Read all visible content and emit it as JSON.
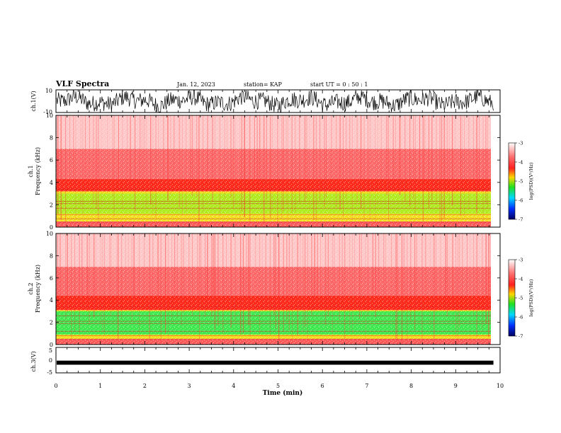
{
  "header": {
    "title": "VLF Spectra",
    "date": "Jan. 12, 2023",
    "station": "station= KAP",
    "start": "start UT =   0 : 50 : 1"
  },
  "chart_data": [
    {
      "type": "line",
      "panel": "ch1-waveform",
      "ylabel": "ch.1(V)",
      "ylim": [
        -10,
        10
      ],
      "yticks": [
        "10",
        "-10"
      ],
      "x_range_min": [
        0,
        9.85
      ],
      "description_of_series": "dense broadband waveform, amplitude mostly between -9 and +9 V"
    },
    {
      "type": "heatmap",
      "panel": "ch1-spectrogram",
      "ylabel": "ch.1 Frequency (kHz)",
      "xlim": [
        0,
        10
      ],
      "ylim": [
        0,
        10
      ],
      "yticks": [
        "0",
        "2",
        "4",
        "6",
        "8",
        "10"
      ],
      "x_data_end": 9.85,
      "bands_khz": [
        {
          "from": 0,
          "to": 0.5,
          "color": "#ff5a5a"
        },
        {
          "from": 0.5,
          "to": 3.2,
          "color": "#f0e020"
        },
        {
          "from": 1.2,
          "to": 3.0,
          "color": "#b0ea20"
        },
        {
          "from": 3.2,
          "to": 4.3,
          "color": "#ff2a1a"
        },
        {
          "from": 4.3,
          "to": 7.0,
          "color": "#ff6a6a"
        },
        {
          "from": 7.0,
          "to": 10.0,
          "color": "#ffc8c8"
        }
      ],
      "lines_khz": [
        0.45,
        0.75,
        1.1,
        1.7,
        2.1,
        2.3,
        3.4
      ]
    },
    {
      "type": "heatmap",
      "panel": "ch2-spectrogram",
      "ylabel": "ch.2 Frequency (kHz)",
      "xlim": [
        0,
        10
      ],
      "ylim": [
        0,
        10
      ],
      "yticks": [
        "0",
        "2",
        "4",
        "6",
        "8",
        "10"
      ],
      "x_data_end": 9.85,
      "bands_khz": [
        {
          "from": 0,
          "to": 0.5,
          "color": "#ff5a5a"
        },
        {
          "from": 0.5,
          "to": 3.1,
          "color": "#f0e020"
        },
        {
          "from": 0.9,
          "to": 3.0,
          "color": "#40e850"
        },
        {
          "from": 3.1,
          "to": 4.4,
          "color": "#ff2a1a"
        },
        {
          "from": 4.4,
          "to": 7.0,
          "color": "#ff6a6a"
        },
        {
          "from": 7.0,
          "to": 10.0,
          "color": "#ffc8c8"
        }
      ],
      "lines_khz": [
        0.5,
        0.8,
        1.2,
        1.9,
        2.1,
        2.6,
        3.4
      ]
    },
    {
      "type": "line",
      "panel": "ch3-waveform",
      "ylabel": "ch.3(V)",
      "ylim": [
        -5,
        5
      ],
      "yticks": [
        "5",
        "0",
        "-5"
      ],
      "x_range_min": [
        0,
        9.85
      ],
      "description_of_series": "thin flat band around -1 V"
    }
  ],
  "xaxis": {
    "label": "Time (min)",
    "ticks": [
      "0",
      "1",
      "2",
      "3",
      "4",
      "5",
      "6",
      "7",
      "8",
      "9",
      "10"
    ]
  },
  "colorbar": {
    "label": "log(PSD)(V²/Hz)",
    "ticks": [
      "-3",
      "-4",
      "-5",
      "-6",
      "-7"
    ],
    "stops": [
      "#ffffff",
      "#ff3030",
      "#ffd700",
      "#20e020",
      "#00d8ff",
      "#0030ff",
      "#000080"
    ]
  }
}
